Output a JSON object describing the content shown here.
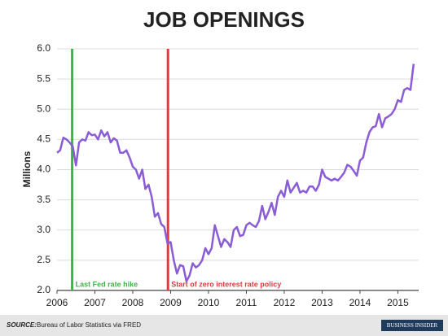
{
  "chart_data": {
    "type": "line",
    "title": "JOB OPENINGS",
    "ylabel": "Millions",
    "color": "#8a5cd6",
    "grid": true,
    "xlim": [
      2006,
      2015.55
    ],
    "xticks": [
      2006,
      2007,
      2008,
      2009,
      2010,
      2011,
      2012,
      2013,
      2014,
      2015
    ],
    "ylim": [
      2,
      6
    ],
    "yticks": [
      {
        "value": 2,
        "label": "2.0"
      },
      {
        "value": 2.5,
        "label": "2.5"
      },
      {
        "value": 3,
        "label": "3.0"
      },
      {
        "value": 3.5,
        "label": "3.5"
      },
      {
        "value": 4,
        "label": "4.0"
      },
      {
        "value": 4.5,
        "label": "4.5"
      },
      {
        "value": 5,
        "label": "5.0"
      },
      {
        "value": 5.5,
        "label": "5.5"
      },
      {
        "value": 6,
        "label": "6.0"
      }
    ],
    "x": [
      2006,
      2006.083,
      2006.167,
      2006.25,
      2006.333,
      2006.417,
      2006.5,
      2006.583,
      2006.667,
      2006.75,
      2006.833,
      2006.917,
      2007,
      2007.083,
      2007.167,
      2007.25,
      2007.333,
      2007.417,
      2007.5,
      2007.583,
      2007.667,
      2007.75,
      2007.833,
      2007.917,
      2008,
      2008.083,
      2008.167,
      2008.25,
      2008.333,
      2008.417,
      2008.5,
      2008.583,
      2008.667,
      2008.75,
      2008.833,
      2008.917,
      2009,
      2009.083,
      2009.167,
      2009.25,
      2009.333,
      2009.417,
      2009.5,
      2009.583,
      2009.667,
      2009.75,
      2009.833,
      2009.917,
      2010,
      2010.083,
      2010.167,
      2010.25,
      2010.333,
      2010.417,
      2010.5,
      2010.583,
      2010.667,
      2010.75,
      2010.833,
      2010.917,
      2011,
      2011.083,
      2011.167,
      2011.25,
      2011.333,
      2011.417,
      2011.5,
      2011.583,
      2011.667,
      2011.75,
      2011.833,
      2011.917,
      2012,
      2012.083,
      2012.167,
      2012.25,
      2012.333,
      2012.417,
      2012.5,
      2012.583,
      2012.667,
      2012.75,
      2012.833,
      2012.917,
      2013,
      2013.083,
      2013.167,
      2013.25,
      2013.333,
      2013.417,
      2013.5,
      2013.583,
      2013.667,
      2013.75,
      2013.833,
      2013.917,
      2014,
      2014.083,
      2014.167,
      2014.25,
      2014.333,
      2014.417,
      2014.5,
      2014.583,
      2014.667,
      2014.75,
      2014.833,
      2014.917,
      2015,
      2015.083,
      2015.167,
      2015.25,
      2015.333,
      2015.417
    ],
    "values": [
      4.28,
      4.32,
      4.53,
      4.5,
      4.45,
      4.38,
      4.07,
      4.45,
      4.5,
      4.48,
      4.62,
      4.57,
      4.58,
      4.5,
      4.65,
      4.55,
      4.62,
      4.45,
      4.52,
      4.48,
      4.28,
      4.28,
      4.32,
      4.2,
      4.05,
      4.0,
      3.85,
      4.0,
      3.68,
      3.75,
      3.55,
      3.22,
      3.28,
      3.1,
      3.05,
      2.78,
      2.8,
      2.5,
      2.28,
      2.42,
      2.4,
      2.15,
      2.25,
      2.45,
      2.38,
      2.42,
      2.5,
      2.7,
      2.6,
      2.7,
      3.08,
      2.9,
      2.72,
      2.85,
      2.8,
      2.72,
      3.0,
      3.05,
      2.9,
      2.92,
      3.08,
      3.12,
      3.08,
      3.05,
      3.15,
      3.4,
      3.18,
      3.3,
      3.45,
      3.25,
      3.55,
      3.65,
      3.55,
      3.82,
      3.62,
      3.7,
      3.78,
      3.62,
      3.65,
      3.62,
      3.72,
      3.72,
      3.65,
      3.75,
      4.0,
      3.88,
      3.85,
      3.82,
      3.85,
      3.82,
      3.88,
      3.95,
      4.08,
      4.05,
      3.98,
      3.9,
      4.15,
      4.2,
      4.45,
      4.62,
      4.7,
      4.72,
      4.92,
      4.7,
      4.85,
      4.88,
      4.92,
      5.0,
      5.15,
      5.12,
      5.32,
      5.35,
      5.32,
      5.75
    ],
    "annotations": [
      {
        "x": 2006.4,
        "label": "Last Fed rate hike",
        "color": "#3cb54a"
      },
      {
        "x": 2008.93,
        "label": "Start of zero interest rate policy",
        "color": "#e8383d"
      }
    ],
    "source_label": "SOURCE:",
    "source": "Bureau of Labor Statistics via FRED",
    "brand": "BUSINESS INSIDER"
  }
}
